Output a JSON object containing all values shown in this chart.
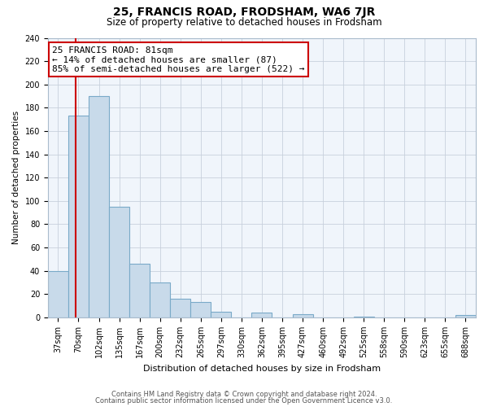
{
  "title": "25, FRANCIS ROAD, FRODSHAM, WA6 7JR",
  "subtitle": "Size of property relative to detached houses in Frodsham",
  "xlabel": "Distribution of detached houses by size in Frodsham",
  "ylabel": "Number of detached properties",
  "bar_labels": [
    "37sqm",
    "70sqm",
    "102sqm",
    "135sqm",
    "167sqm",
    "200sqm",
    "232sqm",
    "265sqm",
    "297sqm",
    "330sqm",
    "362sqm",
    "395sqm",
    "427sqm",
    "460sqm",
    "492sqm",
    "525sqm",
    "558sqm",
    "590sqm",
    "623sqm",
    "655sqm",
    "688sqm"
  ],
  "bar_values": [
    40,
    173,
    190,
    95,
    46,
    30,
    16,
    13,
    5,
    0,
    4,
    0,
    3,
    0,
    0,
    1,
    0,
    0,
    0,
    0,
    2
  ],
  "bar_color": "#c8daea",
  "bar_edge_color": "#7aaac8",
  "vline_color": "#cc0000",
  "annotation_box_text": "25 FRANCIS ROAD: 81sqm\n← 14% of detached houses are smaller (87)\n85% of semi-detached houses are larger (522) →",
  "ylim": [
    0,
    240
  ],
  "yticks": [
    0,
    20,
    40,
    60,
    80,
    100,
    120,
    140,
    160,
    180,
    200,
    220,
    240
  ],
  "footer_line1": "Contains HM Land Registry data © Crown copyright and database right 2024.",
  "footer_line2": "Contains public sector information licensed under the Open Government Licence v3.0.",
  "bg_color": "#ffffff",
  "plot_bg_color": "#f0f5fb",
  "grid_color": "#c8d0dc",
  "title_fontsize": 10,
  "subtitle_fontsize": 8.5,
  "xlabel_fontsize": 8,
  "ylabel_fontsize": 7.5,
  "tick_fontsize": 7,
  "footer_fontsize": 6,
  "annotation_fontsize": 8
}
